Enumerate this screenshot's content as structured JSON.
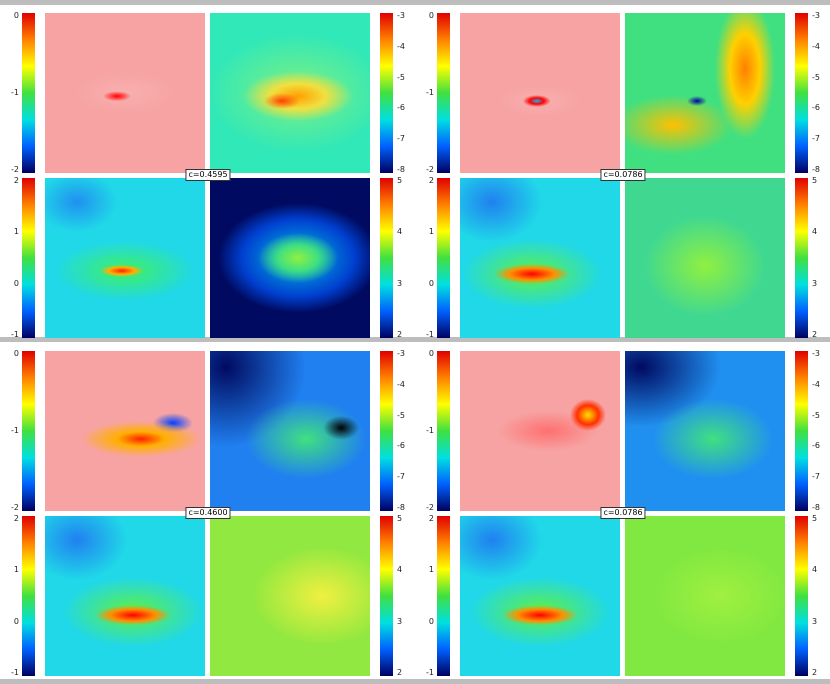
{
  "panels": [
    {
      "label": "c=0.4595",
      "colorbars": [
        [
          "0",
          "-1",
          "-2"
        ],
        [
          "-3",
          "-4",
          "-5",
          "-6",
          "-7",
          "-8"
        ],
        [
          "2",
          "1",
          "0",
          "-1"
        ],
        [
          "5",
          "4",
          "3",
          "2"
        ]
      ]
    },
    {
      "label": "c=0.0786",
      "colorbars": [
        [
          "0",
          "-1",
          "-2"
        ],
        [
          "-3",
          "-4",
          "-5",
          "-6",
          "-7",
          "-8"
        ],
        [
          "2",
          "1",
          "0",
          "-1"
        ],
        [
          "5",
          "4",
          "3",
          "2"
        ]
      ]
    },
    {
      "label": "c=0.4600",
      "colorbars": [
        [
          "0",
          "-1",
          "-2"
        ],
        [
          "-3",
          "-4",
          "-5",
          "-6",
          "-7",
          "-8"
        ],
        [
          "2",
          "1",
          "0",
          "-1"
        ],
        [
          "5",
          "4",
          "3",
          "2"
        ]
      ]
    },
    {
      "label": "c=0.0786",
      "colorbars": [
        [
          "0",
          "-1",
          "-2"
        ],
        [
          "-3",
          "-4",
          "-5",
          "-6",
          "-7",
          "-8"
        ],
        [
          "2",
          "1",
          "0",
          "-1"
        ],
        [
          "5",
          "4",
          "3",
          "2"
        ]
      ]
    }
  ]
}
